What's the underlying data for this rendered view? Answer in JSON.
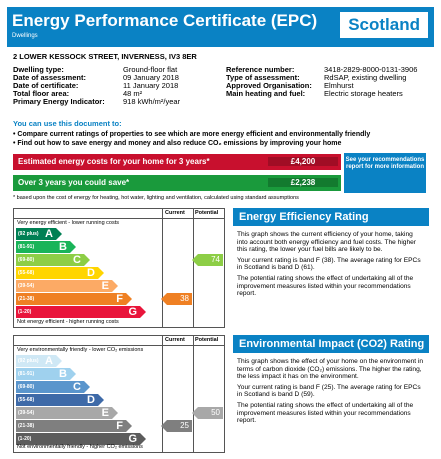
{
  "header": {
    "title": "Energy Performance Certificate (EPC)",
    "subtitle": "Dwellings",
    "country": "Scotland"
  },
  "address": "2 LOWER KESSOCK STREET, INVERNESS, IV3 8ER",
  "details_left": [
    {
      "label": "Dwelling type:",
      "value": "Ground-floor flat"
    },
    {
      "label": "Date of assessment:",
      "value": "09 January 2018"
    },
    {
      "label": "Date of certificate:",
      "value": "11 January 2018"
    },
    {
      "label": "Total floor area:",
      "value": "48 m²"
    },
    {
      "label": "Primary Energy Indicator:",
      "value": "918 kWh/m²/year"
    }
  ],
  "details_right": [
    {
      "label": "Reference number:",
      "value": "3418-2829-8000-0131-3906"
    },
    {
      "label": "Type of assessment:",
      "value": "RdSAP, existing dwelling"
    },
    {
      "label": "Approved Organisation:",
      "value": "Elmhurst"
    },
    {
      "label": "Main heating and fuel:",
      "value": "Electric storage heaters"
    }
  ],
  "use_heading": "You can use this document to:",
  "bullets": [
    "Compare current ratings of properties to see which are more energy efficient and environmentally friendly",
    "Find out how to save energy and money and also reduce CO₂ emissions by improving your home"
  ],
  "costs": {
    "estimated_label": "Estimated energy costs for your home for 3 years*",
    "estimated_value": "£4,200",
    "save_label": "Over 3 years you could save*",
    "save_value": "£2,238",
    "see_box": "See your recommendations report for more information",
    "red": "#c8102e",
    "green": "#1a9a3c"
  },
  "footnote": "* based upon the cost of energy for heating, hot water, lighting and ventilation, calculated using standard assumptions",
  "eer_chart": {
    "top_label": "Very energy efficient - lower running costs",
    "bottom_label": "Not energy efficient - higher running costs",
    "current_label": "Current",
    "potential_label": "Potential",
    "bands": [
      {
        "range": "(92 plus)",
        "letter": "A",
        "color": "#008054"
      },
      {
        "range": "(81-91)",
        "letter": "B",
        "color": "#19b459"
      },
      {
        "range": "(69-80)",
        "letter": "C",
        "color": "#8dce46"
      },
      {
        "range": "(55-68)",
        "letter": "D",
        "color": "#ffd500"
      },
      {
        "range": "(39-54)",
        "letter": "E",
        "color": "#fcaa65"
      },
      {
        "range": "(21-38)",
        "letter": "F",
        "color": "#ef8023"
      },
      {
        "range": "(1-20)",
        "letter": "G",
        "color": "#e9153b"
      }
    ],
    "current": {
      "value": "38",
      "band_index": 5,
      "color": "#ef8023"
    },
    "potential": {
      "value": "74",
      "band_index": 2,
      "color": "#8dce46"
    }
  },
  "eir_chart": {
    "top_label": "Very environmentally friendly - lower CO₂ emissions",
    "bottom_label": "Not environmentally friendly - higher CO₂ emissions",
    "current_label": "Current",
    "potential_label": "Potential",
    "bands": [
      {
        "range": "(92 plus)",
        "letter": "A",
        "color": "#cfe8f5"
      },
      {
        "range": "(81-91)",
        "letter": "B",
        "color": "#9fd1ee"
      },
      {
        "range": "(69-80)",
        "letter": "C",
        "color": "#5a95cc"
      },
      {
        "range": "(55-68)",
        "letter": "D",
        "color": "#3e6aa8"
      },
      {
        "range": "(39-54)",
        "letter": "E",
        "color": "#a8a8a8"
      },
      {
        "range": "(21-38)",
        "letter": "F",
        "color": "#7f7f7f"
      },
      {
        "range": "(1-20)",
        "letter": "G",
        "color": "#5c5c5c"
      }
    ],
    "current": {
      "value": "25",
      "band_index": 5,
      "color": "#7f7f7f"
    },
    "potential": {
      "value": "50",
      "band_index": 4,
      "color": "#a8a8a8"
    }
  },
  "eer_panel": {
    "title": "Energy Efficiency Rating",
    "p1": "This graph shows the current efficiency of your home, taking into account both energy efficiency and fuel costs. The higher this rating, the lower your fuel bills are likely to be.",
    "p2": "Your current rating is band F (38). The average rating for EPCs in Scotland is band D (61).",
    "p3": "The potential rating shows the effect of undertaking all of the improvement measures listed within your recommendations report."
  },
  "eir_panel": {
    "title": "Environmental Impact (CO2) Rating",
    "p1": "This graph shows the effect of your home on the environment in terms of carbon dioxide (CO₂) emissions. The higher the rating, the less impact it has on the environment.",
    "p2": "Your current rating is band F (25). The average rating for EPCs in Scotland is band D (59).",
    "p3": "The potential rating shows the effect of undertaking all of the improvement measures listed within your recommendations report."
  }
}
